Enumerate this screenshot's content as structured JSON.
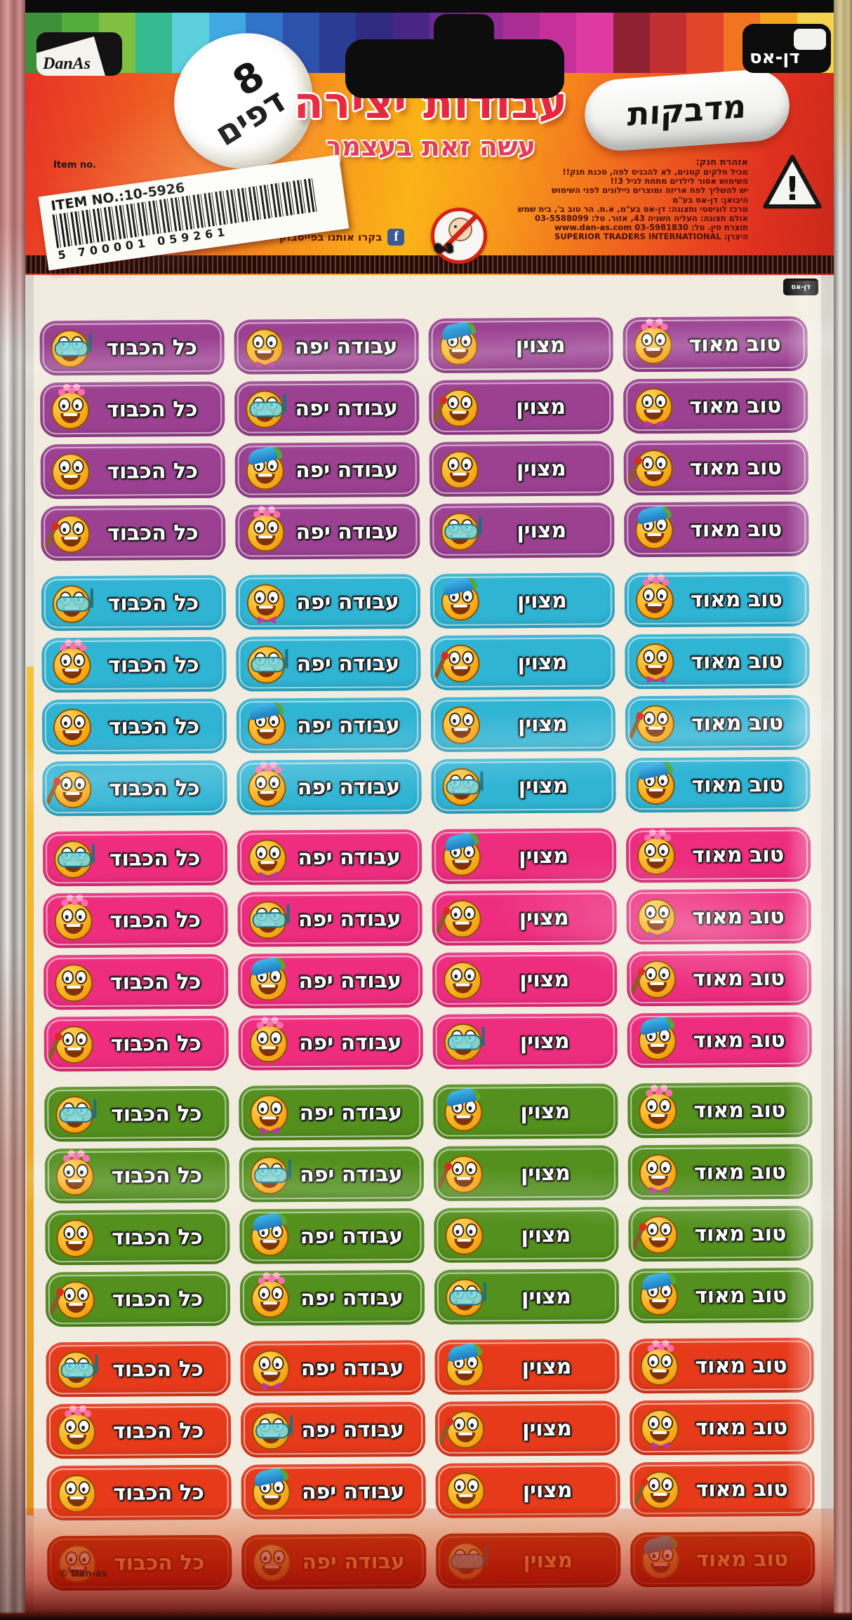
{
  "package": {
    "top_left_logo": "DanAs",
    "top_right_logo": "דן-אס",
    "pages_badge_number": "8",
    "pages_badge_word": "דפים",
    "title": "עבודות יצירה",
    "subtitle": "עשה זאת בעצמך",
    "stickers_label": "מדבקות",
    "warning_heading": "אזהרת חנק:",
    "warning_lines": [
      "מכיל חלקים קטנים, לא להכניס לפה, סכנת חנק!!",
      "השימוש אסור לילדים מתחת לגיל 3!!",
      "יש להשליך לפח אריזה ומוצרים ניילונים לפני השימוש",
      "היבואן: דן-אס בע\"מ",
      "מרכז לוגיסטי ותצוגה: דן-אס בע\"מ, א.ת. הר טוב ב', בית שמש",
      "אולם תצוגה: העליה השניה 43, אזור. טל: 03-5588099",
      "תוצרת סין. טל: 03-5981830 www.dan-as.com",
      "היצרן: SUPERIOR TRADERS INTERNATIONAL"
    ],
    "age_icon_text": "0-3",
    "item_no_label": "Item no.",
    "barcode_title": "ITEM NO.:10-5926",
    "barcode_digits": "5 700001 059261",
    "facebook_text": "בקרו אותנו בפייסבוק",
    "copyright": "© Dan-as",
    "stripe_colors": [
      "#3e9138",
      "#54ac3c",
      "#7fbf41",
      "#35b98f",
      "#5ccfdd",
      "#41a8e0",
      "#3173c8",
      "#2c52ac",
      "#2a3c93",
      "#312a83",
      "#472685",
      "#6a2b90",
      "#8d2c92",
      "#a92e96",
      "#c5309a",
      "#de3aa2",
      "#8f2133",
      "#c03031",
      "#e2462a",
      "#f07422",
      "#f7a41d",
      "#f5d24e"
    ]
  },
  "sheet": {
    "corner_logo": "דן-אס",
    "column_labels": [
      "כל הכבוד",
      "עבודה יפה",
      "מצוין",
      "טוב מאוד"
    ],
    "groups": [
      {
        "name": "purple",
        "color": "#9c4192",
        "rows": 4
      },
      {
        "name": "cyan",
        "color": "#2fb4d4",
        "rows": 4
      },
      {
        "name": "pink",
        "color": "#ee2d7f",
        "rows": 4
      },
      {
        "name": "green",
        "color": "#53901d",
        "rows": 4
      },
      {
        "name": "red",
        "color": "#e73a1b",
        "rows": 3
      }
    ],
    "emoji_pattern": [
      [
        "snorkel",
        "bow",
        "cap",
        "flowers"
      ],
      [
        "flowers",
        "snorkel",
        "paintbrush",
        "bow"
      ],
      [
        "plain",
        "cap",
        "plain",
        "paintbrush"
      ],
      [
        "paintbrush",
        "flowers",
        "snorkel",
        "cap"
      ]
    ],
    "partial_row": {
      "color": "#a81a08",
      "text_color": "#f0944a",
      "emojis": [
        "plain",
        "plain",
        "snorkel",
        "cap"
      ]
    },
    "sheet_color": "#f1ecdf"
  }
}
